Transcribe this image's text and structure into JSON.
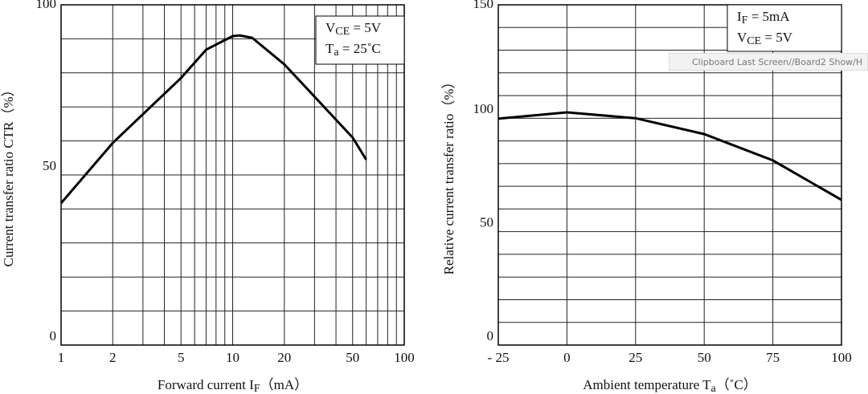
{
  "chart_data": [
    {
      "type": "line",
      "xscale": "log",
      "color": "#000000",
      "x": [
        1,
        2,
        5,
        7,
        10,
        11,
        13,
        20,
        30,
        50,
        60
      ],
      "values": [
        41.7,
        59.4,
        78.5,
        86.8,
        90.8,
        91,
        90.3,
        82.5,
        73,
        61,
        54.5
      ],
      "xlim": [
        1,
        100
      ],
      "ylim": [
        0,
        100
      ],
      "xticks": [
        1,
        2,
        5,
        10,
        20,
        50,
        100
      ],
      "yticks": [
        0,
        50,
        100
      ],
      "xgrid": [
        1,
        2,
        3,
        4,
        5,
        6,
        7,
        8,
        9,
        10,
        20,
        30,
        40,
        50,
        60,
        70,
        80,
        90,
        100
      ],
      "ygrid": [
        0,
        10,
        20,
        30,
        40,
        50,
        60,
        70,
        80,
        90,
        100
      ],
      "xlabel": [
        {
          "text": "Forward current I"
        },
        {
          "text": "F",
          "sub": true
        },
        {
          "text": "（mA）"
        }
      ],
      "ylabel": [
        {
          "text": "Current transfer ratio CTR（%）"
        }
      ],
      "annotations": [
        [
          {
            "text": "V"
          },
          {
            "text": "CE",
            "sub": true
          },
          {
            "text": " = 5V"
          }
        ],
        [
          {
            "text": "T"
          },
          {
            "text": "a",
            "sub": true
          },
          {
            "text": " = 25˚C"
          }
        ]
      ]
    },
    {
      "type": "line",
      "xscale": "linear",
      "color": "#000000",
      "x": [
        -25,
        0,
        25,
        50,
        75,
        100
      ],
      "values": [
        99.8,
        102.6,
        100,
        93,
        81.4,
        64
      ],
      "xlim": [
        -25,
        100
      ],
      "ylim": [
        0,
        150
      ],
      "xticks": [
        {
          "value": -25,
          "label": "- 25"
        },
        0,
        25,
        50,
        75,
        100
      ],
      "yticks": [
        0,
        50,
        100,
        150
      ],
      "xgrid": [
        -25,
        0,
        25,
        50,
        75,
        100
      ],
      "ygrid": [
        0,
        10,
        20,
        30,
        40,
        50,
        60,
        70,
        80,
        90,
        100,
        110,
        120,
        130,
        140,
        150
      ],
      "xlabel": [
        {
          "text": "Ambient temperature T"
        },
        {
          "text": "a",
          "sub": true
        },
        {
          "text": "（˚C）"
        }
      ],
      "ylabel": [
        {
          "text": "Relative current transfer ratio（%）"
        }
      ],
      "annotations": [
        [
          {
            "text": "I"
          },
          {
            "text": "F",
            "sub": true
          },
          {
            "text": " = 5mA"
          }
        ],
        [
          {
            "text": "V"
          },
          {
            "text": "CE",
            "sub": true
          },
          {
            "text": " = 5V"
          }
        ]
      ]
    }
  ],
  "overlay": "Clipboard Last Screen//Board2 Show/H"
}
